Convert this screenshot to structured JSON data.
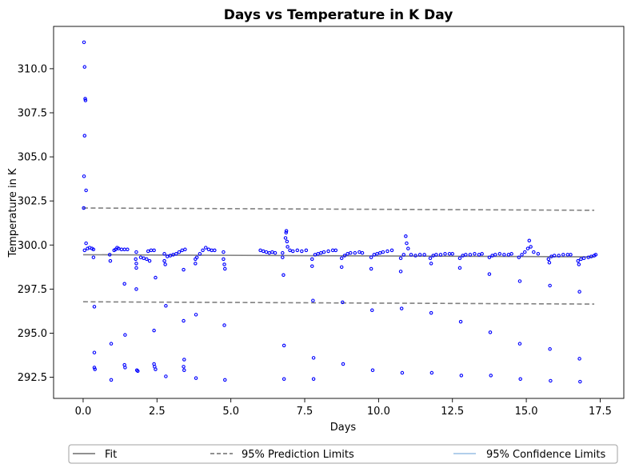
{
  "chart_data": {
    "type": "scatter",
    "title": "Days vs Temperature in K Day",
    "xlabel": "Days",
    "ylabel": "Temperature in K",
    "xlim": [
      -1.0,
      18.3
    ],
    "ylim": [
      291.3,
      312.4
    ],
    "xticks": [
      0.0,
      2.5,
      5.0,
      7.5,
      10.0,
      12.5,
      15.0,
      17.5
    ],
    "xtick_labels": [
      "0.0",
      "2.5",
      "5.0",
      "7.5",
      "10.0",
      "12.5",
      "15.0",
      "17.5"
    ],
    "yticks": [
      292.5,
      295.0,
      297.5,
      300.0,
      302.5,
      305.0,
      307.5,
      310.0
    ],
    "ytick_labels": [
      "292.5",
      "295.0",
      "297.5",
      "300.0",
      "302.5",
      "305.0",
      "307.5",
      "310.0"
    ],
    "grid": false,
    "legend": {
      "placement": "below-chart",
      "entries": [
        {
          "label": "Fit",
          "style": "solid",
          "color": "#808080"
        },
        {
          "label": "95% Prediction Limits",
          "style": "dashed",
          "color": "#808080"
        },
        {
          "label": "95% Confidence Limits",
          "style": "solid",
          "color": "#a6c8e8"
        }
      ]
    },
    "colors": {
      "points": "#0000ff",
      "fit": "#808080",
      "prediction": "#808080",
      "confidence": "#a6c8e8"
    },
    "lines": {
      "fit": {
        "x": [
          0.0,
          17.3
        ],
        "y": [
          299.45,
          299.33
        ]
      },
      "prediction_upper": {
        "x": [
          0.0,
          17.3
        ],
        "y": [
          302.1,
          301.97
        ]
      },
      "prediction_lower": {
        "x": [
          0.0,
          17.3
        ],
        "y": [
          296.78,
          296.65
        ]
      }
    },
    "series": [
      {
        "points": [
          [
            0.03,
            311.5
          ],
          [
            0.05,
            310.1
          ],
          [
            0.07,
            308.3
          ],
          [
            0.08,
            308.2
          ],
          [
            0.05,
            306.2
          ],
          [
            0.03,
            303.9
          ],
          [
            0.1,
            303.1
          ],
          [
            0.02,
            302.1
          ],
          [
            0.1,
            300.1
          ],
          [
            0.05,
            299.7
          ],
          [
            0.15,
            299.8
          ],
          [
            0.22,
            299.85
          ],
          [
            0.3,
            299.8
          ],
          [
            0.35,
            299.75
          ],
          [
            0.35,
            299.3
          ],
          [
            0.38,
            296.5
          ],
          [
            0.38,
            293.9
          ],
          [
            0.38,
            293.05
          ],
          [
            0.4,
            292.95
          ],
          [
            0.9,
            299.45
          ],
          [
            0.92,
            299.1
          ],
          [
            0.95,
            294.4
          ],
          [
            0.95,
            292.35
          ],
          [
            1.05,
            299.7
          ],
          [
            1.1,
            299.75
          ],
          [
            1.15,
            299.85
          ],
          [
            1.2,
            299.8
          ],
          [
            1.3,
            299.75
          ],
          [
            1.4,
            299.75
          ],
          [
            1.5,
            299.75
          ],
          [
            1.4,
            297.8
          ],
          [
            1.42,
            294.9
          ],
          [
            1.4,
            293.2
          ],
          [
            1.42,
            293.05
          ],
          [
            1.8,
            299.6
          ],
          [
            1.78,
            299.2
          ],
          [
            1.8,
            298.95
          ],
          [
            1.8,
            298.7
          ],
          [
            1.8,
            297.5
          ],
          [
            1.82,
            292.9
          ],
          [
            1.85,
            292.85
          ],
          [
            1.95,
            299.3
          ],
          [
            2.05,
            299.25
          ],
          [
            2.15,
            299.2
          ],
          [
            2.25,
            299.1
          ],
          [
            2.2,
            299.65
          ],
          [
            2.3,
            299.7
          ],
          [
            2.4,
            299.7
          ],
          [
            2.45,
            298.15
          ],
          [
            2.4,
            295.15
          ],
          [
            2.4,
            293.25
          ],
          [
            2.42,
            293.1
          ],
          [
            2.45,
            292.95
          ],
          [
            2.75,
            299.5
          ],
          [
            2.75,
            299.1
          ],
          [
            2.78,
            298.9
          ],
          [
            2.8,
            296.55
          ],
          [
            2.8,
            292.55
          ],
          [
            2.85,
            299.35
          ],
          [
            2.95,
            299.4
          ],
          [
            3.05,
            299.45
          ],
          [
            3.15,
            299.5
          ],
          [
            3.25,
            299.6
          ],
          [
            3.35,
            299.7
          ],
          [
            3.45,
            299.75
          ],
          [
            3.4,
            298.6
          ],
          [
            3.4,
            295.7
          ],
          [
            3.42,
            293.5
          ],
          [
            3.4,
            293.1
          ],
          [
            3.42,
            292.9
          ],
          [
            3.8,
            299.2
          ],
          [
            3.8,
            298.95
          ],
          [
            3.82,
            296.05
          ],
          [
            3.82,
            292.45
          ],
          [
            3.85,
            299.3
          ],
          [
            3.95,
            299.5
          ],
          [
            4.05,
            299.7
          ],
          [
            4.15,
            299.85
          ],
          [
            4.25,
            299.75
          ],
          [
            4.35,
            299.7
          ],
          [
            4.45,
            299.7
          ],
          [
            4.75,
            299.6
          ],
          [
            4.75,
            299.2
          ],
          [
            4.78,
            298.9
          ],
          [
            4.8,
            298.65
          ],
          [
            4.78,
            295.45
          ],
          [
            4.8,
            292.35
          ],
          [
            6.0,
            299.7
          ],
          [
            6.1,
            299.65
          ],
          [
            6.2,
            299.6
          ],
          [
            6.3,
            299.55
          ],
          [
            6.4,
            299.6
          ],
          [
            6.5,
            299.55
          ],
          [
            6.75,
            299.55
          ],
          [
            6.75,
            299.3
          ],
          [
            6.78,
            298.3
          ],
          [
            6.8,
            294.3
          ],
          [
            6.8,
            292.4
          ],
          [
            6.85,
            300.4
          ],
          [
            6.87,
            300.7
          ],
          [
            6.88,
            300.8
          ],
          [
            6.9,
            300.2
          ],
          [
            6.92,
            299.9
          ],
          [
            7.0,
            299.7
          ],
          [
            7.1,
            299.65
          ],
          [
            7.25,
            299.7
          ],
          [
            7.4,
            299.65
          ],
          [
            7.55,
            299.7
          ],
          [
            7.75,
            299.2
          ],
          [
            7.75,
            298.8
          ],
          [
            7.78,
            296.85
          ],
          [
            7.8,
            293.6
          ],
          [
            7.8,
            292.4
          ],
          [
            7.85,
            299.45
          ],
          [
            7.95,
            299.5
          ],
          [
            8.05,
            299.55
          ],
          [
            8.15,
            299.6
          ],
          [
            8.3,
            299.65
          ],
          [
            8.45,
            299.7
          ],
          [
            8.55,
            299.7
          ],
          [
            8.75,
            299.25
          ],
          [
            8.75,
            298.75
          ],
          [
            8.78,
            296.75
          ],
          [
            8.8,
            293.25
          ],
          [
            8.85,
            299.4
          ],
          [
            8.95,
            299.5
          ],
          [
            9.05,
            299.55
          ],
          [
            9.2,
            299.55
          ],
          [
            9.35,
            299.6
          ],
          [
            9.45,
            299.55
          ],
          [
            9.75,
            299.3
          ],
          [
            9.75,
            298.65
          ],
          [
            9.78,
            296.3
          ],
          [
            9.8,
            292.9
          ],
          [
            9.85,
            299.45
          ],
          [
            9.95,
            299.5
          ],
          [
            10.05,
            299.55
          ],
          [
            10.15,
            299.6
          ],
          [
            10.3,
            299.65
          ],
          [
            10.45,
            299.7
          ],
          [
            10.75,
            299.25
          ],
          [
            10.75,
            298.5
          ],
          [
            10.78,
            296.4
          ],
          [
            10.8,
            292.75
          ],
          [
            10.85,
            299.45
          ],
          [
            10.92,
            300.5
          ],
          [
            10.95,
            300.1
          ],
          [
            11.0,
            299.8
          ],
          [
            11.1,
            299.45
          ],
          [
            11.25,
            299.4
          ],
          [
            11.4,
            299.45
          ],
          [
            11.55,
            299.45
          ],
          [
            11.75,
            299.25
          ],
          [
            11.78,
            298.95
          ],
          [
            11.78,
            296.15
          ],
          [
            11.8,
            292.75
          ],
          [
            11.85,
            299.4
          ],
          [
            11.95,
            299.45
          ],
          [
            12.1,
            299.45
          ],
          [
            12.25,
            299.5
          ],
          [
            12.4,
            299.5
          ],
          [
            12.5,
            299.5
          ],
          [
            12.75,
            299.25
          ],
          [
            12.75,
            298.7
          ],
          [
            12.78,
            295.65
          ],
          [
            12.8,
            292.6
          ],
          [
            12.85,
            299.4
          ],
          [
            12.95,
            299.45
          ],
          [
            13.1,
            299.45
          ],
          [
            13.25,
            299.5
          ],
          [
            13.4,
            299.45
          ],
          [
            13.5,
            299.5
          ],
          [
            13.75,
            299.3
          ],
          [
            13.75,
            298.35
          ],
          [
            13.78,
            295.05
          ],
          [
            13.8,
            292.6
          ],
          [
            13.85,
            299.4
          ],
          [
            13.95,
            299.45
          ],
          [
            14.1,
            299.5
          ],
          [
            14.25,
            299.45
          ],
          [
            14.4,
            299.45
          ],
          [
            14.5,
            299.5
          ],
          [
            14.75,
            299.3
          ],
          [
            14.78,
            297.95
          ],
          [
            14.78,
            294.4
          ],
          [
            14.8,
            292.4
          ],
          [
            14.85,
            299.45
          ],
          [
            14.95,
            299.6
          ],
          [
            15.05,
            299.8
          ],
          [
            15.1,
            300.25
          ],
          [
            15.15,
            299.9
          ],
          [
            15.25,
            299.6
          ],
          [
            15.4,
            299.5
          ],
          [
            15.75,
            299.2
          ],
          [
            15.78,
            299.0
          ],
          [
            15.8,
            297.7
          ],
          [
            15.8,
            294.1
          ],
          [
            15.82,
            292.3
          ],
          [
            15.85,
            299.35
          ],
          [
            15.95,
            299.4
          ],
          [
            16.1,
            299.4
          ],
          [
            16.25,
            299.45
          ],
          [
            16.4,
            299.45
          ],
          [
            16.5,
            299.45
          ],
          [
            16.75,
            299.1
          ],
          [
            16.78,
            298.9
          ],
          [
            16.8,
            297.35
          ],
          [
            16.8,
            293.55
          ],
          [
            16.82,
            292.25
          ],
          [
            16.85,
            299.2
          ],
          [
            16.95,
            299.25
          ],
          [
            17.1,
            299.3
          ],
          [
            17.2,
            299.35
          ],
          [
            17.3,
            299.4
          ],
          [
            17.35,
            299.45
          ]
        ]
      }
    ]
  }
}
